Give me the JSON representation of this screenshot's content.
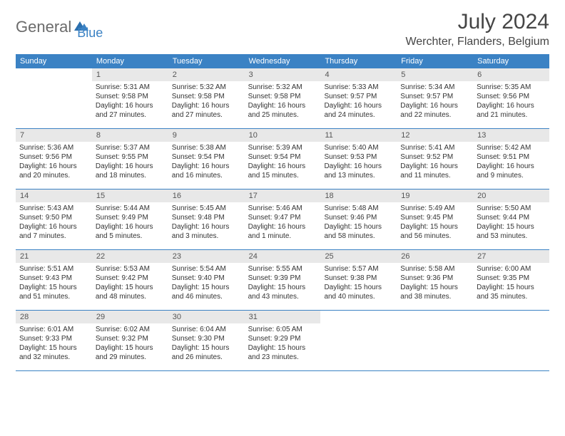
{
  "logo": {
    "text1": "General",
    "text2": "Blue"
  },
  "title": "July 2024",
  "location": "Werchter, Flanders, Belgium",
  "colors": {
    "header_bg": "#3b82c4",
    "daynum_bg": "#e8e8e8",
    "border": "#3b82c4",
    "text": "#333333",
    "logo_gray": "#6b6b6b",
    "logo_blue": "#3b82c4"
  },
  "weekdays": [
    "Sunday",
    "Monday",
    "Tuesday",
    "Wednesday",
    "Thursday",
    "Friday",
    "Saturday"
  ],
  "weeks": [
    [
      null,
      {
        "n": "1",
        "sr": "5:31 AM",
        "ss": "9:58 PM",
        "dl": "16 hours and 27 minutes."
      },
      {
        "n": "2",
        "sr": "5:32 AM",
        "ss": "9:58 PM",
        "dl": "16 hours and 27 minutes."
      },
      {
        "n": "3",
        "sr": "5:32 AM",
        "ss": "9:58 PM",
        "dl": "16 hours and 25 minutes."
      },
      {
        "n": "4",
        "sr": "5:33 AM",
        "ss": "9:57 PM",
        "dl": "16 hours and 24 minutes."
      },
      {
        "n": "5",
        "sr": "5:34 AM",
        "ss": "9:57 PM",
        "dl": "16 hours and 22 minutes."
      },
      {
        "n": "6",
        "sr": "5:35 AM",
        "ss": "9:56 PM",
        "dl": "16 hours and 21 minutes."
      }
    ],
    [
      {
        "n": "7",
        "sr": "5:36 AM",
        "ss": "9:56 PM",
        "dl": "16 hours and 20 minutes."
      },
      {
        "n": "8",
        "sr": "5:37 AM",
        "ss": "9:55 PM",
        "dl": "16 hours and 18 minutes."
      },
      {
        "n": "9",
        "sr": "5:38 AM",
        "ss": "9:54 PM",
        "dl": "16 hours and 16 minutes."
      },
      {
        "n": "10",
        "sr": "5:39 AM",
        "ss": "9:54 PM",
        "dl": "16 hours and 15 minutes."
      },
      {
        "n": "11",
        "sr": "5:40 AM",
        "ss": "9:53 PM",
        "dl": "16 hours and 13 minutes."
      },
      {
        "n": "12",
        "sr": "5:41 AM",
        "ss": "9:52 PM",
        "dl": "16 hours and 11 minutes."
      },
      {
        "n": "13",
        "sr": "5:42 AM",
        "ss": "9:51 PM",
        "dl": "16 hours and 9 minutes."
      }
    ],
    [
      {
        "n": "14",
        "sr": "5:43 AM",
        "ss": "9:50 PM",
        "dl": "16 hours and 7 minutes."
      },
      {
        "n": "15",
        "sr": "5:44 AM",
        "ss": "9:49 PM",
        "dl": "16 hours and 5 minutes."
      },
      {
        "n": "16",
        "sr": "5:45 AM",
        "ss": "9:48 PM",
        "dl": "16 hours and 3 minutes."
      },
      {
        "n": "17",
        "sr": "5:46 AM",
        "ss": "9:47 PM",
        "dl": "16 hours and 1 minute."
      },
      {
        "n": "18",
        "sr": "5:48 AM",
        "ss": "9:46 PM",
        "dl": "15 hours and 58 minutes."
      },
      {
        "n": "19",
        "sr": "5:49 AM",
        "ss": "9:45 PM",
        "dl": "15 hours and 56 minutes."
      },
      {
        "n": "20",
        "sr": "5:50 AM",
        "ss": "9:44 PM",
        "dl": "15 hours and 53 minutes."
      }
    ],
    [
      {
        "n": "21",
        "sr": "5:51 AM",
        "ss": "9:43 PM",
        "dl": "15 hours and 51 minutes."
      },
      {
        "n": "22",
        "sr": "5:53 AM",
        "ss": "9:42 PM",
        "dl": "15 hours and 48 minutes."
      },
      {
        "n": "23",
        "sr": "5:54 AM",
        "ss": "9:40 PM",
        "dl": "15 hours and 46 minutes."
      },
      {
        "n": "24",
        "sr": "5:55 AM",
        "ss": "9:39 PM",
        "dl": "15 hours and 43 minutes."
      },
      {
        "n": "25",
        "sr": "5:57 AM",
        "ss": "9:38 PM",
        "dl": "15 hours and 40 minutes."
      },
      {
        "n": "26",
        "sr": "5:58 AM",
        "ss": "9:36 PM",
        "dl": "15 hours and 38 minutes."
      },
      {
        "n": "27",
        "sr": "6:00 AM",
        "ss": "9:35 PM",
        "dl": "15 hours and 35 minutes."
      }
    ],
    [
      {
        "n": "28",
        "sr": "6:01 AM",
        "ss": "9:33 PM",
        "dl": "15 hours and 32 minutes."
      },
      {
        "n": "29",
        "sr": "6:02 AM",
        "ss": "9:32 PM",
        "dl": "15 hours and 29 minutes."
      },
      {
        "n": "30",
        "sr": "6:04 AM",
        "ss": "9:30 PM",
        "dl": "15 hours and 26 minutes."
      },
      {
        "n": "31",
        "sr": "6:05 AM",
        "ss": "9:29 PM",
        "dl": "15 hours and 23 minutes."
      },
      null,
      null,
      null
    ]
  ],
  "labels": {
    "sunrise": "Sunrise: ",
    "sunset": "Sunset: ",
    "daylight": "Daylight: "
  }
}
